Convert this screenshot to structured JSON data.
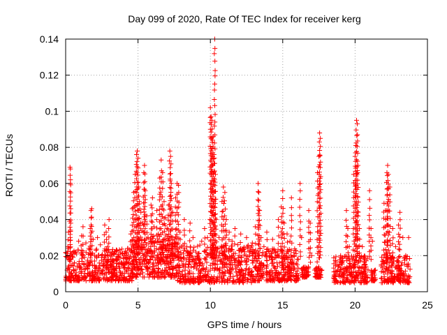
{
  "chart_data": {
    "type": "scatter",
    "title": "Day 099 of 2020, Rate Of TEC Index for receiver kerg",
    "xlabel": "GPS time / hours",
    "ylabel": "ROTI / TECUs",
    "xlim": [
      0,
      25
    ],
    "ylim": [
      0,
      0.14
    ],
    "x_ticks": [
      0,
      5,
      10,
      15,
      20,
      25
    ],
    "x_tick_labels": [
      "0",
      "5",
      "10",
      "15",
      "20",
      "25"
    ],
    "y_ticks": [
      0,
      0.02,
      0.04,
      0.06,
      0.08,
      0.1,
      0.12,
      0.14
    ],
    "y_tick_labels": [
      "0",
      "0.02",
      "0.04",
      "0.06",
      "0.08",
      "0.1",
      "0.12",
      "0.14"
    ],
    "grid": true,
    "marker": "+",
    "color": "#ff0000",
    "series": [
      {
        "name": "ROTI",
        "points": [
          [
            0.1,
            0.012
          ],
          [
            0.15,
            0.025
          ],
          [
            0.2,
            0.033
          ],
          [
            0.25,
            0.018
          ],
          [
            0.3,
            0.069
          ],
          [
            0.33,
            0.068
          ],
          [
            0.35,
            0.038
          ],
          [
            0.4,
            0.021
          ],
          [
            0.5,
            0.009
          ],
          [
            0.6,
            0.016
          ],
          [
            0.7,
            0.022
          ],
          [
            0.8,
            0.014
          ],
          [
            0.9,
            0.028
          ],
          [
            1.0,
            0.011
          ],
          [
            1.1,
            0.031
          ],
          [
            1.2,
            0.036
          ],
          [
            1.3,
            0.019
          ],
          [
            1.4,
            0.027
          ],
          [
            1.5,
            0.013
          ],
          [
            1.6,
            0.024
          ],
          [
            1.7,
            0.035
          ],
          [
            1.75,
            0.045
          ],
          [
            1.8,
            0.046
          ],
          [
            1.9,
            0.029
          ],
          [
            2.0,
            0.017
          ],
          [
            2.1,
            0.023
          ],
          [
            2.2,
            0.03
          ],
          [
            2.3,
            0.012
          ],
          [
            2.4,
            0.026
          ],
          [
            2.5,
            0.02
          ],
          [
            2.6,
            0.014
          ],
          [
            2.7,
            0.037
          ],
          [
            2.8,
            0.033
          ],
          [
            2.9,
            0.025
          ],
          [
            3.0,
            0.04
          ],
          [
            3.1,
            0.015
          ],
          [
            3.2,
            0.022
          ],
          [
            3.3,
            0.01
          ],
          [
            3.5,
            0.018
          ],
          [
            3.7,
            0.013
          ],
          [
            3.9,
            0.021
          ],
          [
            4.1,
            0.016
          ],
          [
            4.3,
            0.024
          ],
          [
            4.5,
            0.032
          ],
          [
            4.6,
            0.046
          ],
          [
            4.7,
            0.055
          ],
          [
            4.8,
            0.065
          ],
          [
            4.9,
            0.076
          ],
          [
            4.95,
            0.078
          ],
          [
            5.0,
            0.074
          ],
          [
            5.05,
            0.058
          ],
          [
            5.1,
            0.05
          ],
          [
            5.2,
            0.044
          ],
          [
            5.3,
            0.038
          ],
          [
            5.4,
            0.066
          ],
          [
            5.45,
            0.07
          ],
          [
            5.5,
            0.056
          ],
          [
            5.6,
            0.042
          ],
          [
            5.7,
            0.03
          ],
          [
            5.8,
            0.022
          ],
          [
            5.9,
            0.048
          ],
          [
            6.0,
            0.052
          ],
          [
            6.1,
            0.036
          ],
          [
            6.2,
            0.028
          ],
          [
            6.3,
            0.045
          ],
          [
            6.4,
            0.032
          ],
          [
            6.5,
            0.063
          ],
          [
            6.6,
            0.073
          ],
          [
            6.7,
            0.066
          ],
          [
            6.8,
            0.05
          ],
          [
            6.9,
            0.041
          ],
          [
            7.0,
            0.035
          ],
          [
            7.1,
            0.048
          ],
          [
            7.2,
            0.078
          ],
          [
            7.25,
            0.075
          ],
          [
            7.3,
            0.06
          ],
          [
            7.4,
            0.044
          ],
          [
            7.5,
            0.027
          ],
          [
            7.6,
            0.052
          ],
          [
            7.7,
            0.06
          ],
          [
            7.8,
            0.059
          ],
          [
            7.9,
            0.033
          ],
          [
            8.0,
            0.025
          ],
          [
            8.2,
            0.04
          ],
          [
            8.4,
            0.02
          ],
          [
            8.6,
            0.038
          ],
          [
            8.8,
            0.03
          ],
          [
            9.0,
            0.022
          ],
          [
            9.2,
            0.018
          ],
          [
            9.4,
            0.028
          ],
          [
            9.6,
            0.035
          ],
          [
            9.8,
            0.03
          ],
          [
            10.0,
            0.102
          ],
          [
            10.05,
            0.097
          ],
          [
            10.1,
            0.095
          ],
          [
            10.15,
            0.084
          ],
          [
            10.2,
            0.086
          ],
          [
            10.25,
            0.076
          ],
          [
            10.3,
            0.14
          ],
          [
            10.35,
            0.065
          ],
          [
            10.4,
            0.04
          ],
          [
            10.6,
            0.03
          ],
          [
            10.8,
            0.05
          ],
          [
            10.9,
            0.058
          ],
          [
            11.0,
            0.055
          ],
          [
            11.1,
            0.04
          ],
          [
            11.3,
            0.033
          ],
          [
            11.5,
            0.028
          ],
          [
            11.7,
            0.035
          ],
          [
            11.9,
            0.026
          ],
          [
            12.1,
            0.032
          ],
          [
            12.3,
            0.024
          ],
          [
            12.5,
            0.03
          ],
          [
            12.7,
            0.022
          ],
          [
            12.9,
            0.027
          ],
          [
            13.1,
            0.036
          ],
          [
            13.3,
            0.06
          ],
          [
            13.35,
            0.055
          ],
          [
            13.4,
            0.045
          ],
          [
            13.5,
            0.03
          ],
          [
            13.7,
            0.025
          ],
          [
            13.9,
            0.033
          ],
          [
            14.1,
            0.02
          ],
          [
            14.3,
            0.029
          ],
          [
            14.5,
            0.022
          ],
          [
            14.7,
            0.04
          ],
          [
            14.9,
            0.047
          ],
          [
            15.0,
            0.056
          ],
          [
            15.1,
            0.038
          ],
          [
            15.3,
            0.032
          ],
          [
            15.5,
            0.028
          ],
          [
            15.6,
            0.052
          ],
          [
            15.8,
            0.02
          ],
          [
            16.0,
            0.015
          ],
          [
            16.2,
            0.06
          ],
          [
            16.3,
            0.03
          ],
          [
            16.5,
            0.012
          ],
          [
            16.8,
            0.045
          ],
          [
            16.9,
            0.038
          ],
          [
            17.0,
            0.02
          ],
          [
            17.2,
            0.012
          ],
          [
            17.4,
            0.066
          ],
          [
            17.5,
            0.075
          ],
          [
            17.55,
            0.088
          ],
          [
            17.6,
            0.085
          ],
          [
            17.7,
            0.012
          ],
          [
            18.8,
            0.012
          ],
          [
            19.0,
            0.02
          ],
          [
            19.2,
            0.01
          ],
          [
            19.4,
            0.045
          ],
          [
            19.5,
            0.035
          ],
          [
            19.6,
            0.025
          ],
          [
            19.8,
            0.018
          ],
          [
            19.9,
            0.065
          ],
          [
            20.0,
            0.075
          ],
          [
            20.05,
            0.081
          ],
          [
            20.1,
            0.095
          ],
          [
            20.15,
            0.093
          ],
          [
            20.2,
            0.07
          ],
          [
            20.3,
            0.035
          ],
          [
            20.5,
            0.025
          ],
          [
            20.7,
            0.015
          ],
          [
            21.0,
            0.056
          ],
          [
            21.1,
            0.035
          ],
          [
            21.2,
            0.028
          ],
          [
            21.4,
            0.012
          ],
          [
            22.0,
            0.049
          ],
          [
            22.1,
            0.045
          ],
          [
            22.2,
            0.066
          ],
          [
            22.25,
            0.07
          ],
          [
            22.3,
            0.065
          ],
          [
            22.4,
            0.058
          ],
          [
            22.6,
            0.035
          ],
          [
            22.8,
            0.025
          ],
          [
            23.0,
            0.037
          ],
          [
            23.1,
            0.044
          ],
          [
            23.3,
            0.03
          ],
          [
            23.5,
            0.02
          ],
          [
            23.6,
            0.014
          ],
          [
            23.7,
            0.03
          ]
        ],
        "clusters": [
          {
            "x_range": [
              0,
              4.6
            ],
            "y_range": [
              0.006,
              0.024
            ]
          },
          {
            "x_range": [
              4.6,
              7.7
            ],
            "y_range": [
              0.008,
              0.03
            ]
          },
          {
            "x_range": [
              7.7,
              13.0
            ],
            "y_range": [
              0.005,
              0.026
            ]
          },
          {
            "x_range": [
              13.0,
              16.1
            ],
            "y_range": [
              0.006,
              0.024
            ]
          },
          {
            "x_range": [
              16.3,
              16.8
            ],
            "y_range": [
              0.008,
              0.014
            ]
          },
          {
            "x_range": [
              17.2,
              17.7
            ],
            "y_range": [
              0.008,
              0.014
            ]
          },
          {
            "x_range": [
              18.5,
              20.9
            ],
            "y_range": [
              0.005,
              0.02
            ]
          },
          {
            "x_range": [
              21.1,
              21.4
            ],
            "y_range": [
              0.006,
              0.012
            ]
          },
          {
            "x_range": [
              21.8,
              23.8
            ],
            "y_range": [
              0.005,
              0.02
            ]
          }
        ]
      }
    ]
  }
}
